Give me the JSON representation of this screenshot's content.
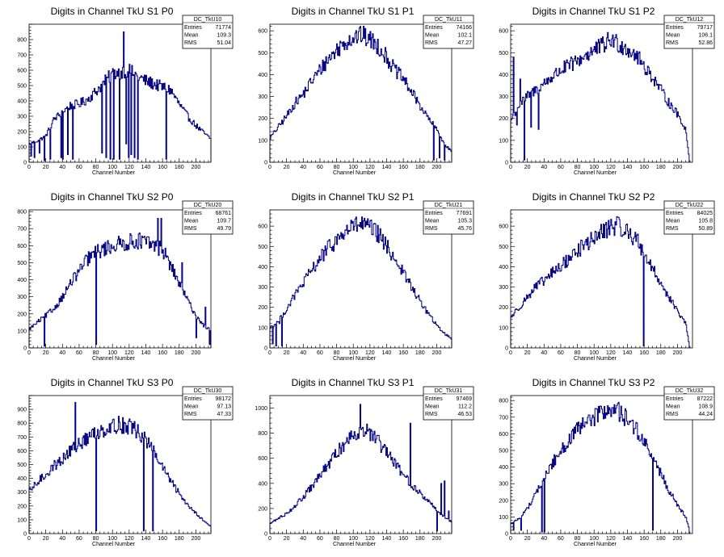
{
  "chart_data": [
    {
      "type": "histogram",
      "title": "Digits in Channel TkU S1 P0",
      "xlabel": "Channel Number",
      "xlim": [
        0,
        218
      ],
      "ylim": [
        0,
        900
      ],
      "xticks": [
        0,
        20,
        40,
        60,
        80,
        100,
        120,
        140,
        160,
        180,
        200
      ],
      "yticks": [
        0,
        100,
        200,
        300,
        400,
        500,
        600,
        700,
        800
      ],
      "stats": {
        "name": "DC_TkU10",
        "entries": "71774",
        "mean": "109.3",
        "rms": "51.04"
      },
      "anchors": [
        [
          0,
          120
        ],
        [
          10,
          140
        ],
        [
          20,
          170
        ],
        [
          30,
          280
        ],
        [
          40,
          330
        ],
        [
          50,
          370
        ],
        [
          60,
          380
        ],
        [
          70,
          410
        ],
        [
          80,
          460
        ],
        [
          90,
          520
        ],
        [
          100,
          580
        ],
        [
          110,
          590
        ],
        [
          120,
          600
        ],
        [
          130,
          560
        ],
        [
          140,
          530
        ],
        [
          150,
          510
        ],
        [
          160,
          490
        ],
        [
          170,
          470
        ],
        [
          180,
          380
        ],
        [
          190,
          300
        ],
        [
          200,
          240
        ],
        [
          210,
          190
        ],
        [
          218,
          150
        ]
      ],
      "spikes": [
        [
          2,
          40
        ],
        [
          6,
          30
        ],
        [
          12,
          60
        ],
        [
          18,
          10
        ],
        [
          25,
          20
        ],
        [
          38,
          30
        ],
        [
          40,
          20
        ],
        [
          46,
          50
        ],
        [
          52,
          20
        ],
        [
          87,
          60
        ],
        [
          92,
          30
        ],
        [
          97,
          20
        ],
        [
          101,
          20
        ],
        [
          108,
          20
        ],
        [
          113,
          850
        ],
        [
          116,
          120
        ],
        [
          119,
          30
        ],
        [
          122,
          50
        ],
        [
          126,
          30
        ],
        [
          130,
          20
        ],
        [
          164,
          20
        ]
      ]
    },
    {
      "type": "histogram",
      "title": "Digits in Channel TkU S1 P1",
      "xlabel": "Channel Number",
      "xlim": [
        0,
        218
      ],
      "ylim": [
        0,
        630
      ],
      "xticks": [
        0,
        20,
        40,
        60,
        80,
        100,
        120,
        140,
        160,
        180,
        200
      ],
      "yticks": [
        0,
        100,
        200,
        300,
        400,
        500,
        600
      ],
      "stats": {
        "name": "DC_TkU11",
        "entries": "74166",
        "mean": "102.1",
        "rms": "47.27"
      },
      "anchors": [
        [
          0,
          110
        ],
        [
          10,
          160
        ],
        [
          20,
          210
        ],
        [
          30,
          270
        ],
        [
          40,
          310
        ],
        [
          50,
          370
        ],
        [
          60,
          420
        ],
        [
          70,
          470
        ],
        [
          80,
          510
        ],
        [
          90,
          550
        ],
        [
          100,
          570
        ],
        [
          110,
          580
        ],
        [
          120,
          560
        ],
        [
          130,
          530
        ],
        [
          140,
          480
        ],
        [
          150,
          420
        ],
        [
          160,
          380
        ],
        [
          170,
          320
        ],
        [
          180,
          260
        ],
        [
          190,
          200
        ],
        [
          200,
          150
        ],
        [
          210,
          80
        ],
        [
          218,
          50
        ]
      ],
      "spikes": [
        [
          196,
          10
        ],
        [
          203,
          20
        ],
        [
          209,
          10
        ]
      ]
    },
    {
      "type": "histogram",
      "title": "Digits in Channel TkU S1 P2",
      "xlabel": "Channel Number",
      "xlim": [
        0,
        218
      ],
      "ylim": [
        0,
        630
      ],
      "xticks": [
        0,
        20,
        40,
        60,
        80,
        100,
        120,
        140,
        160,
        180,
        200
      ],
      "yticks": [
        0,
        100,
        200,
        300,
        400,
        500,
        600
      ],
      "stats": {
        "name": "DC_TkU12",
        "entries": "79717",
        "mean": "106.1",
        "rms": "52.86"
      },
      "anchors": [
        [
          0,
          190
        ],
        [
          10,
          260
        ],
        [
          20,
          300
        ],
        [
          30,
          330
        ],
        [
          40,
          360
        ],
        [
          50,
          390
        ],
        [
          60,
          420
        ],
        [
          70,
          440
        ],
        [
          80,
          460
        ],
        [
          90,
          490
        ],
        [
          100,
          510
        ],
        [
          110,
          530
        ],
        [
          120,
          560
        ],
        [
          130,
          540
        ],
        [
          140,
          520
        ],
        [
          150,
          490
        ],
        [
          160,
          440
        ],
        [
          170,
          390
        ],
        [
          180,
          330
        ],
        [
          190,
          270
        ],
        [
          200,
          220
        ],
        [
          210,
          150
        ],
        [
          214,
          20
        ]
      ],
      "spikes": [
        [
          3,
          480
        ],
        [
          7,
          170
        ],
        [
          11,
          380
        ],
        [
          16,
          10
        ],
        [
          24,
          160
        ],
        [
          33,
          150
        ]
      ]
    },
    {
      "type": "histogram",
      "title": "Digits in Channel TkU S2 P0",
      "xlabel": "Channel Number",
      "xlim": [
        0,
        218
      ],
      "ylim": [
        0,
        810
      ],
      "xticks": [
        0,
        20,
        40,
        60,
        80,
        100,
        120,
        140,
        160,
        180,
        200
      ],
      "yticks": [
        0,
        100,
        200,
        300,
        400,
        500,
        600,
        700,
        800
      ],
      "stats": {
        "name": "DC_TkU20",
        "entries": "68761",
        "mean": "109.7",
        "rms": "49.79"
      },
      "anchors": [
        [
          0,
          110
        ],
        [
          10,
          150
        ],
        [
          20,
          190
        ],
        [
          30,
          230
        ],
        [
          40,
          300
        ],
        [
          50,
          380
        ],
        [
          60,
          450
        ],
        [
          70,
          520
        ],
        [
          80,
          560
        ],
        [
          90,
          580
        ],
        [
          100,
          600
        ],
        [
          110,
          610
        ],
        [
          120,
          620
        ],
        [
          130,
          630
        ],
        [
          140,
          620
        ],
        [
          150,
          600
        ],
        [
          160,
          580
        ],
        [
          170,
          480
        ],
        [
          180,
          380
        ],
        [
          190,
          280
        ],
        [
          200,
          190
        ],
        [
          210,
          130
        ],
        [
          218,
          100
        ]
      ],
      "spikes": [
        [
          18,
          10
        ],
        [
          80,
          20
        ],
        [
          154,
          760
        ],
        [
          158,
          760
        ],
        [
          183,
          500
        ],
        [
          200,
          60
        ],
        [
          211,
          240
        ],
        [
          216,
          20
        ]
      ]
    },
    {
      "type": "histogram",
      "title": "Digits in Channel TkU S2 P1",
      "xlabel": "Channel Number",
      "xlim": [
        0,
        218
      ],
      "ylim": [
        0,
        680
      ],
      "xticks": [
        0,
        20,
        40,
        60,
        80,
        100,
        120,
        140,
        160,
        180,
        200
      ],
      "yticks": [
        0,
        100,
        200,
        300,
        400,
        500,
        600
      ],
      "stats": {
        "name": "DC_TkU21",
        "entries": "77691",
        "mean": "105.3",
        "rms": "45.76"
      },
      "anchors": [
        [
          0,
          100
        ],
        [
          10,
          130
        ],
        [
          20,
          190
        ],
        [
          30,
          260
        ],
        [
          40,
          320
        ],
        [
          50,
          380
        ],
        [
          60,
          440
        ],
        [
          70,
          490
        ],
        [
          80,
          530
        ],
        [
          90,
          570
        ],
        [
          100,
          600
        ],
        [
          110,
          610
        ],
        [
          120,
          590
        ],
        [
          130,
          560
        ],
        [
          140,
          500
        ],
        [
          150,
          440
        ],
        [
          160,
          370
        ],
        [
          170,
          300
        ],
        [
          180,
          230
        ],
        [
          190,
          170
        ],
        [
          200,
          110
        ],
        [
          210,
          70
        ],
        [
          218,
          45
        ]
      ],
      "spikes": [
        [
          3,
          20
        ],
        [
          7,
          10
        ],
        [
          11,
          120
        ],
        [
          14,
          10
        ]
      ]
    },
    {
      "type": "histogram",
      "title": "Digits in Channel TkU S2 P2",
      "xlabel": "Channel Number",
      "xlim": [
        0,
        218
      ],
      "ylim": [
        0,
        680
      ],
      "xticks": [
        0,
        20,
        40,
        60,
        80,
        100,
        120,
        140,
        160,
        180,
        200
      ],
      "yticks": [
        0,
        100,
        200,
        300,
        400,
        500,
        600
      ],
      "stats": {
        "name": "DC_TkU22",
        "entries": "84025",
        "mean": "105.8",
        "rms": "50.89"
      },
      "anchors": [
        [
          0,
          150
        ],
        [
          10,
          200
        ],
        [
          20,
          250
        ],
        [
          30,
          300
        ],
        [
          40,
          330
        ],
        [
          50,
          370
        ],
        [
          60,
          400
        ],
        [
          70,
          440
        ],
        [
          80,
          480
        ],
        [
          90,
          510
        ],
        [
          100,
          540
        ],
        [
          110,
          570
        ],
        [
          120,
          600
        ],
        [
          130,
          600
        ],
        [
          140,
          570
        ],
        [
          150,
          540
        ],
        [
          160,
          470
        ],
        [
          170,
          390
        ],
        [
          180,
          320
        ],
        [
          190,
          250
        ],
        [
          200,
          180
        ],
        [
          210,
          120
        ],
        [
          214,
          20
        ]
      ],
      "spikes": [
        [
          159,
          10
        ]
      ]
    },
    {
      "type": "histogram",
      "title": "Digits in Channel TkU S3 P0",
      "xlabel": "Channel Number",
      "xlim": [
        0,
        218
      ],
      "ylim": [
        0,
        1000
      ],
      "xticks": [
        0,
        20,
        40,
        60,
        80,
        100,
        120,
        140,
        160,
        180,
        200
      ],
      "yticks": [
        0,
        100,
        200,
        300,
        400,
        500,
        600,
        700,
        800,
        900
      ],
      "stats": {
        "name": "DC_TkU30",
        "entries": "98172",
        "mean": "97.13",
        "rms": "47.33"
      },
      "anchors": [
        [
          0,
          300
        ],
        [
          10,
          370
        ],
        [
          20,
          430
        ],
        [
          30,
          490
        ],
        [
          40,
          540
        ],
        [
          50,
          600
        ],
        [
          60,
          650
        ],
        [
          70,
          690
        ],
        [
          80,
          730
        ],
        [
          90,
          760
        ],
        [
          100,
          780
        ],
        [
          110,
          790
        ],
        [
          120,
          780
        ],
        [
          130,
          740
        ],
        [
          140,
          680
        ],
        [
          150,
          590
        ],
        [
          160,
          480
        ],
        [
          170,
          380
        ],
        [
          180,
          290
        ],
        [
          190,
          210
        ],
        [
          200,
          150
        ],
        [
          210,
          90
        ],
        [
          218,
          50
        ]
      ],
      "spikes": [
        [
          55,
          950
        ],
        [
          80,
          20
        ],
        [
          137,
          20
        ],
        [
          148,
          20
        ]
      ]
    },
    {
      "type": "histogram",
      "title": "Digits in Channel TkU S3 P1",
      "xlabel": "Channel Number",
      "xlim": [
        0,
        218
      ],
      "ylim": [
        0,
        1100
      ],
      "xticks": [
        0,
        20,
        40,
        60,
        80,
        100,
        120,
        140,
        160,
        180,
        200
      ],
      "yticks": [
        0,
        200,
        400,
        600,
        800,
        1000
      ],
      "stats": {
        "name": "DC_TkU31",
        "entries": "97469",
        "mean": "112.2",
        "rms": "46.53"
      },
      "anchors": [
        [
          0,
          80
        ],
        [
          10,
          120
        ],
        [
          20,
          160
        ],
        [
          30,
          220
        ],
        [
          40,
          290
        ],
        [
          50,
          370
        ],
        [
          60,
          460
        ],
        [
          70,
          550
        ],
        [
          80,
          640
        ],
        [
          90,
          720
        ],
        [
          100,
          800
        ],
        [
          110,
          830
        ],
        [
          120,
          800
        ],
        [
          130,
          730
        ],
        [
          140,
          640
        ],
        [
          150,
          560
        ],
        [
          160,
          470
        ],
        [
          170,
          390
        ],
        [
          180,
          320
        ],
        [
          190,
          260
        ],
        [
          200,
          190
        ],
        [
          210,
          130
        ],
        [
          218,
          90
        ]
      ],
      "spikes": [
        [
          108,
          1030
        ],
        [
          168,
          880
        ],
        [
          200,
          20
        ],
        [
          205,
          400
        ],
        [
          209,
          420
        ],
        [
          214,
          180
        ]
      ]
    },
    {
      "type": "histogram",
      "title": "Digits in Channel TkU S3 P2",
      "xlabel": "Channel Number",
      "xlim": [
        0,
        218
      ],
      "ylim": [
        0,
        830
      ],
      "xticks": [
        0,
        20,
        40,
        60,
        80,
        100,
        120,
        140,
        160,
        180,
        200
      ],
      "yticks": [
        0,
        100,
        200,
        300,
        400,
        500,
        600,
        700,
        800
      ],
      "stats": {
        "name": "DC_TkU32",
        "entries": "87222",
        "mean": "108.9",
        "rms": "44.24"
      },
      "anchors": [
        [
          0,
          60
        ],
        [
          10,
          90
        ],
        [
          20,
          150
        ],
        [
          30,
          240
        ],
        [
          40,
          330
        ],
        [
          50,
          420
        ],
        [
          60,
          500
        ],
        [
          70,
          560
        ],
        [
          80,
          620
        ],
        [
          90,
          660
        ],
        [
          100,
          700
        ],
        [
          110,
          730
        ],
        [
          120,
          750
        ],
        [
          130,
          730
        ],
        [
          140,
          690
        ],
        [
          150,
          630
        ],
        [
          160,
          550
        ],
        [
          170,
          460
        ],
        [
          180,
          360
        ],
        [
          190,
          260
        ],
        [
          200,
          170
        ],
        [
          210,
          100
        ],
        [
          214,
          30
        ]
      ],
      "spikes": [
        [
          3,
          20
        ],
        [
          12,
          20
        ],
        [
          37,
          10
        ],
        [
          40,
          10
        ],
        [
          170,
          20
        ]
      ]
    }
  ],
  "labels": {
    "entries": "Entries",
    "mean": "Mean",
    "rms": "RMS"
  },
  "colors": {
    "line": "#000080",
    "axis": "#000000",
    "background": "#ffffff"
  }
}
